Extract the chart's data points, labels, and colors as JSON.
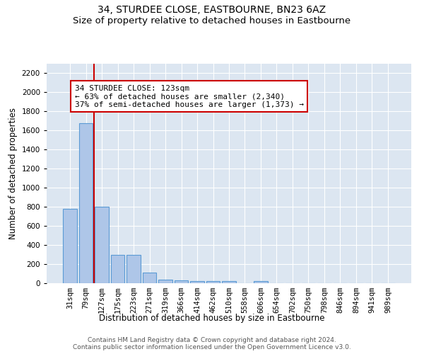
{
  "title": "34, STURDEE CLOSE, EASTBOURNE, BN23 6AZ",
  "subtitle": "Size of property relative to detached houses in Eastbourne",
  "xlabel": "Distribution of detached houses by size in Eastbourne",
  "ylabel": "Number of detached properties",
  "categories": [
    "31sqm",
    "79sqm",
    "127sqm",
    "175sqm",
    "223sqm",
    "271sqm",
    "319sqm",
    "366sqm",
    "414sqm",
    "462sqm",
    "510sqm",
    "558sqm",
    "606sqm",
    "654sqm",
    "702sqm",
    "750sqm",
    "798sqm",
    "846sqm",
    "894sqm",
    "941sqm",
    "989sqm"
  ],
  "values": [
    780,
    1680,
    800,
    295,
    295,
    110,
    40,
    28,
    25,
    22,
    20,
    0,
    22,
    0,
    0,
    0,
    0,
    0,
    0,
    0,
    0
  ],
  "bar_color": "#aec6e8",
  "bar_edge_color": "#5b9bd5",
  "redline_index": 2,
  "redline_color": "#cc0000",
  "annotation_text": "34 STURDEE CLOSE: 123sqm\n← 63% of detached houses are smaller (2,340)\n37% of semi-detached houses are larger (1,373) →",
  "annotation_box_color": "#ffffff",
  "annotation_box_edge": "#cc0000",
  "ylim": [
    0,
    2300
  ],
  "yticks": [
    0,
    200,
    400,
    600,
    800,
    1000,
    1200,
    1400,
    1600,
    1800,
    2000,
    2200
  ],
  "background_color": "#dce6f1",
  "footer_text": "Contains HM Land Registry data © Crown copyright and database right 2024.\nContains public sector information licensed under the Open Government Licence v3.0.",
  "title_fontsize": 10,
  "subtitle_fontsize": 9.5,
  "axis_label_fontsize": 8.5,
  "tick_fontsize": 7.5,
  "annotation_fontsize": 8,
  "footer_fontsize": 6.5
}
